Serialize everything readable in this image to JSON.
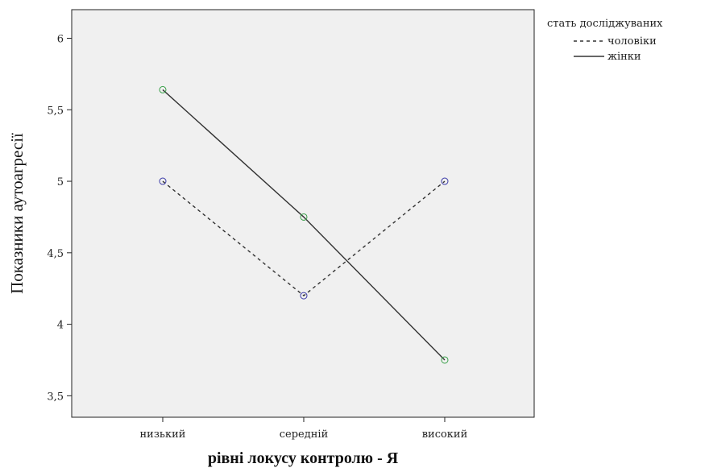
{
  "chart_data": {
    "type": "line",
    "title": "",
    "xlabel": "рівні локусу контролю - Я",
    "ylabel": "Показники аутоагресії",
    "categories": [
      "низький",
      "середній",
      "високий"
    ],
    "ylim": [
      3.35,
      6.2
    ],
    "yticks": [
      "3,5",
      "4",
      "4,5",
      "5",
      "5,5",
      "6"
    ],
    "ytick_values": [
      3.5,
      4.0,
      4.5,
      5.0,
      5.5,
      6.0
    ],
    "legend": {
      "title": "стать досліджуваних",
      "placement": "top-right-outside"
    },
    "series": [
      {
        "name": "чоловіки",
        "values": [
          5.0,
          4.2,
          5.0
        ],
        "line_style": "dashed",
        "line_color": "#333333",
        "marker_color": "#3b3ba8"
      },
      {
        "name": "жінки",
        "values": [
          5.64,
          4.75,
          3.75
        ],
        "line_style": "solid",
        "line_color": "#333333",
        "marker_color": "#3aa04a"
      }
    ],
    "plot_background": "#f0f0f0"
  }
}
